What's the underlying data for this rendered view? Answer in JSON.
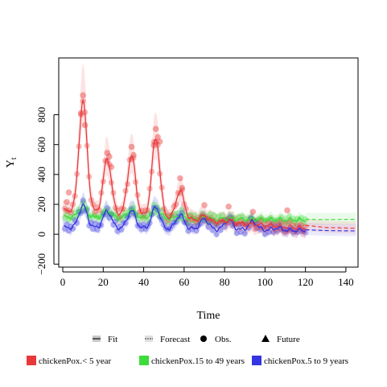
{
  "chart_data": {
    "type": "line",
    "xlabel": "Time",
    "ylabel": "Y",
    "ylabel_subscript": "t",
    "xlim": [
      -2,
      146
    ],
    "ylim": [
      -220,
      1180
    ],
    "xticks": [
      0,
      20,
      40,
      60,
      80,
      100,
      120,
      140
    ],
    "yticks": [
      -200,
      0,
      200,
      400,
      600,
      800
    ],
    "grid": false,
    "fit_end": 120,
    "legend_types": [
      {
        "label": "Fit",
        "symbol": "band-line"
      },
      {
        "label": "Forecast",
        "symbol": "band-dash"
      },
      {
        "label": "Obs.",
        "symbol": "circle"
      },
      {
        "label": "Future",
        "symbol": "triangle"
      }
    ],
    "series": [
      {
        "name": "chickenPox.< 5 year",
        "color": "#e8393a",
        "peaks": [
          {
            "t": 10,
            "h": 900
          },
          {
            "t": 22,
            "h": 530
          },
          {
            "t": 34,
            "h": 560
          },
          {
            "t": 46,
            "h": 690
          },
          {
            "t": 58,
            "h": 350
          },
          {
            "t": 70,
            "h": 190
          },
          {
            "t": 82,
            "h": 175
          },
          {
            "t": 94,
            "h": 140
          },
          {
            "t": 111,
            "h": 110
          }
        ],
        "baseline": 160,
        "baseline_end": 40,
        "forecast": [
          [
            120,
            60
          ],
          [
            130,
            45
          ],
          [
            145,
            40
          ]
        ],
        "obs_highlights": [
          [
            10,
            930
          ],
          [
            9,
            810
          ],
          [
            11,
            730
          ],
          [
            3,
            280
          ],
          [
            2,
            215
          ],
          [
            22,
            545
          ],
          [
            23,
            520
          ],
          [
            24,
            450
          ],
          [
            34,
            585
          ],
          [
            35,
            530
          ],
          [
            45,
            595
          ],
          [
            46,
            705
          ],
          [
            47,
            650
          ],
          [
            48,
            620
          ],
          [
            58,
            375
          ],
          [
            59,
            310
          ],
          [
            70,
            195
          ],
          [
            82,
            185
          ],
          [
            94,
            150
          ],
          [
            111,
            160
          ]
        ]
      },
      {
        "name": "chickenPox.15 to 49 years",
        "color": "#3ddc3d",
        "peaks": [
          {
            "t": 10,
            "h": 190
          },
          {
            "t": 22,
            "h": 160
          },
          {
            "t": 34,
            "h": 170
          },
          {
            "t": 46,
            "h": 180
          },
          {
            "t": 58,
            "h": 140
          },
          {
            "t": 70,
            "h": 125
          },
          {
            "t": 82,
            "h": 120
          },
          {
            "t": 94,
            "h": 115
          },
          {
            "t": 106,
            "h": 110
          }
        ],
        "baseline": 115,
        "baseline_end": 95,
        "forecast": [
          [
            120,
            100
          ],
          [
            130,
            98
          ],
          [
            145,
            100
          ]
        ],
        "obs_highlights": []
      },
      {
        "name": "chickenPox.5 to 9 years",
        "color": "#3434e0",
        "peaks": [
          {
            "t": 10,
            "h": 195
          },
          {
            "t": 22,
            "h": 160
          },
          {
            "t": 34,
            "h": 165
          },
          {
            "t": 46,
            "h": 190
          },
          {
            "t": 58,
            "h": 140
          },
          {
            "t": 70,
            "h": 115
          },
          {
            "t": 82,
            "h": 110
          },
          {
            "t": 94,
            "h": 100
          },
          {
            "t": 106,
            "h": 60
          }
        ],
        "baseline": 45,
        "baseline_end": 25,
        "forecast": [
          [
            120,
            30
          ],
          [
            130,
            25
          ],
          [
            145,
            22
          ]
        ],
        "obs_highlights": []
      }
    ]
  }
}
